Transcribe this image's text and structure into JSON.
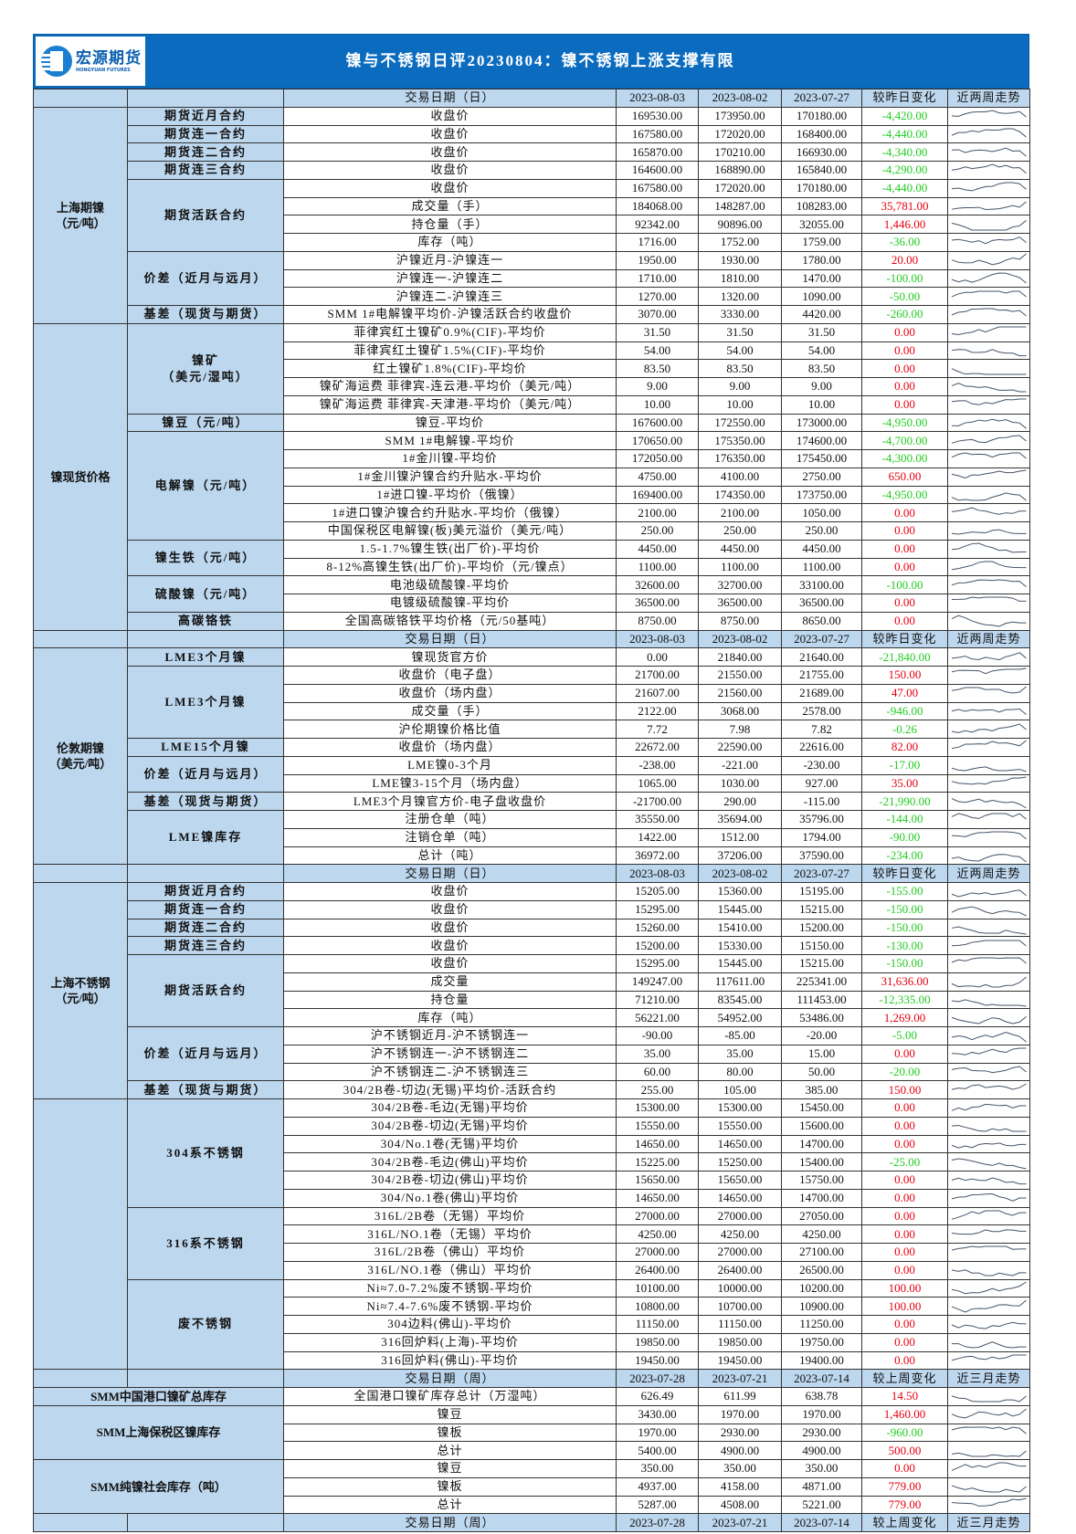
{
  "header": {
    "logo_cn": "宏源期货",
    "logo_en": "HONGYUAN FUTURES",
    "title": "镍与不锈钢日评20230804：镍不锈钢上涨支撑有限"
  },
  "colors": {
    "banner": "#0b6cbf",
    "header_fill": "#bdd7ee",
    "up": "#e60012",
    "down": "#22cc22",
    "sparkline": "#44546a"
  },
  "sections": [
    {
      "date_label": "交易日期（日）",
      "dates": [
        "2023-08-03",
        "2023-08-02",
        "2023-07-27"
      ],
      "change_label": "较昨日变化",
      "trend_label": "近两周走势",
      "blocks": [
        {
          "category": "上海期镍\n（元/吨）",
          "groups": [
            {
              "name": "期货近月合约",
              "rows": [
                [
                  "收盘价",
                  "169530.00",
                  "173950.00",
                  "170180.00",
                  "-4,420.00"
                ]
              ]
            },
            {
              "name": "期货连一合约",
              "rows": [
                [
                  "收盘价",
                  "167580.00",
                  "172020.00",
                  "168400.00",
                  "-4,440.00"
                ]
              ]
            },
            {
              "name": "期货连二合约",
              "rows": [
                [
                  "收盘价",
                  "165870.00",
                  "170210.00",
                  "166930.00",
                  "-4,340.00"
                ]
              ]
            },
            {
              "name": "期货连三合约",
              "rows": [
                [
                  "收盘价",
                  "164600.00",
                  "168890.00",
                  "165840.00",
                  "-4,290.00"
                ]
              ]
            },
            {
              "name": "期货活跃合约",
              "rows": [
                [
                  "收盘价",
                  "167580.00",
                  "172020.00",
                  "170180.00",
                  "-4,440.00"
                ],
                [
                  "成交量（手）",
                  "184068.00",
                  "148287.00",
                  "108283.00",
                  "35,781.00"
                ],
                [
                  "持仓量（手）",
                  "92342.00",
                  "90896.00",
                  "32055.00",
                  "1,446.00"
                ],
                [
                  "库存（吨）",
                  "1716.00",
                  "1752.00",
                  "1759.00",
                  "-36.00"
                ]
              ]
            },
            {
              "name": "价差（近月与远月）",
              "rows": [
                [
                  "沪镍近月-沪镍连一",
                  "1950.00",
                  "1930.00",
                  "1780.00",
                  "20.00"
                ],
                [
                  "沪镍连一-沪镍连二",
                  "1710.00",
                  "1810.00",
                  "1470.00",
                  "-100.00"
                ],
                [
                  "沪镍连二-沪镍连三",
                  "1270.00",
                  "1320.00",
                  "1090.00",
                  "-50.00"
                ]
              ]
            },
            {
              "name": "基差（现货与期货）",
              "rows": [
                [
                  "SMM 1#电解镍平均价-沪镍活跃合约收盘价",
                  "3070.00",
                  "3330.00",
                  "4420.00",
                  "-260.00"
                ]
              ]
            }
          ]
        },
        {
          "category": "镍现货价格",
          "groups": [
            {
              "name": "镍矿\n（美元/湿吨）",
              "rows": [
                [
                  "菲律宾红土镍矿0.9%(CIF)-平均价",
                  "31.50",
                  "31.50",
                  "31.50",
                  "0.00"
                ],
                [
                  "菲律宾红土镍矿1.5%(CIF)-平均价",
                  "54.00",
                  "54.00",
                  "54.00",
                  "0.00"
                ],
                [
                  "红土镍矿1.8%(CIF)-平均价",
                  "83.50",
                  "83.50",
                  "83.50",
                  "0.00"
                ],
                [
                  "镍矿海运费 菲律宾-连云港-平均价（美元/吨）",
                  "9.00",
                  "9.00",
                  "9.00",
                  "0.00"
                ],
                [
                  "镍矿海运费 菲律宾-天津港-平均价（美元/吨）",
                  "10.00",
                  "10.00",
                  "10.00",
                  "0.00"
                ]
              ]
            },
            {
              "name": "镍豆（元/吨）",
              "rows": [
                [
                  "镍豆-平均价",
                  "167600.00",
                  "172550.00",
                  "173000.00",
                  "-4,950.00"
                ]
              ]
            },
            {
              "name": "电解镍（元/吨）",
              "rows": [
                [
                  "SMM 1#电解镍-平均价",
                  "170650.00",
                  "175350.00",
                  "174600.00",
                  "-4,700.00"
                ],
                [
                  "1#金川镍-平均价",
                  "172050.00",
                  "176350.00",
                  "175450.00",
                  "-4,300.00"
                ],
                [
                  "1#金川镍沪镍合约升贴水-平均价",
                  "4750.00",
                  "4100.00",
                  "2750.00",
                  "650.00"
                ],
                [
                  "1#进口镍-平均价（俄镍）",
                  "169400.00",
                  "174350.00",
                  "173750.00",
                  "-4,950.00"
                ],
                [
                  "1#进口镍沪镍合约升贴水-平均价（俄镍）",
                  "2100.00",
                  "2100.00",
                  "1050.00",
                  "0.00"
                ],
                [
                  "中国保税区电解镍(板)美元溢价（美元/吨）",
                  "250.00",
                  "250.00",
                  "250.00",
                  "0.00"
                ]
              ]
            },
            {
              "name": "镍生铁（元/吨）",
              "rows": [
                [
                  "1.5-1.7%镍生铁(出厂价)-平均价",
                  "4450.00",
                  "4450.00",
                  "4450.00",
                  "0.00"
                ],
                [
                  "8-12%高镍生铁(出厂价)-平均价（元/镍点）",
                  "1100.00",
                  "1100.00",
                  "1100.00",
                  "0.00"
                ]
              ]
            },
            {
              "name": "硫酸镍（元/吨）",
              "rows": [
                [
                  "电池级硫酸镍-平均价",
                  "32600.00",
                  "32700.00",
                  "33100.00",
                  "-100.00"
                ],
                [
                  "电镀级硫酸镍-平均价",
                  "36500.00",
                  "36500.00",
                  "36500.00",
                  "0.00"
                ]
              ]
            },
            {
              "name": "高碳铬铁",
              "rows": [
                [
                  "全国高碳铬铁平均价格（元/50基吨）",
                  "8750.00",
                  "8750.00",
                  "8650.00",
                  "0.00"
                ]
              ]
            }
          ]
        }
      ]
    },
    {
      "date_label": "交易日期（日）",
      "dates": [
        "2023-08-03",
        "2023-08-02",
        "2023-07-27"
      ],
      "change_label": "较昨日变化",
      "trend_label": "近两周走势",
      "blocks": [
        {
          "category": "伦敦期镍\n（美元/吨）",
          "groups": [
            {
              "name": "LME3个月镍",
              "rows": [
                [
                  "镍现货官方价",
                  "0.00",
                  "21840.00",
                  "21640.00",
                  "-21,840.00"
                ]
              ]
            },
            {
              "name": "LME3个月镍",
              "rows": [
                [
                  "收盘价（电子盘）",
                  "21700.00",
                  "21550.00",
                  "21755.00",
                  "150.00"
                ],
                [
                  "收盘价（场内盘）",
                  "21607.00",
                  "21560.00",
                  "21689.00",
                  "47.00"
                ],
                [
                  "成交量（手）",
                  "2122.00",
                  "3068.00",
                  "2578.00",
                  "-946.00"
                ],
                [
                  "沪伦期镍价格比值",
                  "7.72",
                  "7.98",
                  "7.82",
                  "-0.26"
                ]
              ]
            },
            {
              "name": "LME15个月镍",
              "rows": [
                [
                  "收盘价（场内盘）",
                  "22672.00",
                  "22590.00",
                  "22616.00",
                  "82.00"
                ]
              ]
            },
            {
              "name": "价差（近月与远月）",
              "rows": [
                [
                  "LME镍0-3个月",
                  "-238.00",
                  "-221.00",
                  "-230.00",
                  "-17.00"
                ],
                [
                  "LME镍3-15个月（场内盘）",
                  "1065.00",
                  "1030.00",
                  "927.00",
                  "35.00"
                ]
              ]
            },
            {
              "name": "基差（现货与期货）",
              "rows": [
                [
                  "LME3个月镍官方价-电子盘收盘价",
                  "-21700.00",
                  "290.00",
                  "-115.00",
                  "-21,990.00"
                ]
              ]
            },
            {
              "name": "LME镍库存",
              "rows": [
                [
                  "注册仓单（吨）",
                  "35550.00",
                  "35694.00",
                  "35796.00",
                  "-144.00"
                ],
                [
                  "注销仓单（吨）",
                  "1422.00",
                  "1512.00",
                  "1794.00",
                  "-90.00"
                ],
                [
                  "总计（吨）",
                  "36972.00",
                  "37206.00",
                  "37590.00",
                  "-234.00"
                ]
              ]
            }
          ]
        }
      ]
    },
    {
      "date_label": "交易日期（日）",
      "dates": [
        "2023-08-03",
        "2023-08-02",
        "2023-07-27"
      ],
      "change_label": "较昨日变化",
      "trend_label": "近两周走势",
      "blocks": [
        {
          "category": "上海不锈钢\n（元/吨）",
          "groups": [
            {
              "name": "期货近月合约",
              "rows": [
                [
                  "收盘价",
                  "15205.00",
                  "15360.00",
                  "15195.00",
                  "-155.00"
                ]
              ]
            },
            {
              "name": "期货连一合约",
              "rows": [
                [
                  "收盘价",
                  "15295.00",
                  "15445.00",
                  "15215.00",
                  "-150.00"
                ]
              ]
            },
            {
              "name": "期货连二合约",
              "rows": [
                [
                  "收盘价",
                  "15260.00",
                  "15410.00",
                  "15200.00",
                  "-150.00"
                ]
              ]
            },
            {
              "name": "期货连三合约",
              "rows": [
                [
                  "收盘价",
                  "15200.00",
                  "15330.00",
                  "15150.00",
                  "-130.00"
                ]
              ]
            },
            {
              "name": "期货活跃合约",
              "rows": [
                [
                  "收盘价",
                  "15295.00",
                  "15445.00",
                  "15215.00",
                  "-150.00"
                ],
                [
                  "成交量",
                  "149247.00",
                  "117611.00",
                  "225341.00",
                  "31,636.00"
                ],
                [
                  "持仓量",
                  "71210.00",
                  "83545.00",
                  "111453.00",
                  "-12,335.00"
                ],
                [
                  "库存（吨）",
                  "56221.00",
                  "54952.00",
                  "53486.00",
                  "1,269.00"
                ]
              ]
            },
            {
              "name": "价差（近月与远月）",
              "rows": [
                [
                  "沪不锈钢近月-沪不锈钢连一",
                  "-90.00",
                  "-85.00",
                  "-20.00",
                  "-5.00"
                ],
                [
                  "沪不锈钢连一-沪不锈钢连二",
                  "35.00",
                  "35.00",
                  "15.00",
                  "0.00"
                ],
                [
                  "沪不锈钢连二-沪不锈钢连三",
                  "60.00",
                  "80.00",
                  "50.00",
                  "-20.00"
                ]
              ]
            },
            {
              "name": "基差（现货与期货）",
              "rows": [
                [
                  "304/2B卷-切边(无锡)平均价-活跃合约",
                  "255.00",
                  "105.00",
                  "385.00",
                  "150.00"
                ]
              ]
            }
          ]
        },
        {
          "category": "",
          "groups": [
            {
              "name": "304系不锈钢",
              "rows": [
                [
                  "304/2B卷-毛边(无锡)平均价",
                  "15300.00",
                  "15300.00",
                  "15450.00",
                  "0.00"
                ],
                [
                  "304/2B卷-切边(无锡)平均价",
                  "15550.00",
                  "15550.00",
                  "15600.00",
                  "0.00"
                ],
                [
                  "304/No.1卷(无锡)平均价",
                  "14650.00",
                  "14650.00",
                  "14700.00",
                  "0.00"
                ],
                [
                  "304/2B卷-毛边(佛山)平均价",
                  "15225.00",
                  "15250.00",
                  "15400.00",
                  "-25.00"
                ],
                [
                  "304/2B卷-切边(佛山)平均价",
                  "15650.00",
                  "15650.00",
                  "15750.00",
                  "0.00"
                ],
                [
                  "304/No.1卷(佛山)平均价",
                  "14650.00",
                  "14650.00",
                  "14700.00",
                  "0.00"
                ]
              ]
            },
            {
              "name": "316系不锈钢",
              "rows": [
                [
                  "316L/2B卷（无锡）平均价",
                  "27000.00",
                  "27000.00",
                  "27050.00",
                  "0.00"
                ],
                [
                  "316L/NO.1卷（无锡）平均价",
                  "4250.00",
                  "4250.00",
                  "4250.00",
                  "0.00"
                ],
                [
                  "316L/2B卷（佛山）平均价",
                  "27000.00",
                  "27000.00",
                  "27100.00",
                  "0.00"
                ],
                [
                  "316L/NO.1卷（佛山）平均价",
                  "26400.00",
                  "26400.00",
                  "26500.00",
                  "0.00"
                ]
              ]
            },
            {
              "name": "废不锈钢",
              "rows": [
                [
                  "Ni≈7.0-7.2%废不锈钢-平均价",
                  "10100.00",
                  "10000.00",
                  "10200.00",
                  "100.00"
                ],
                [
                  "Ni≈7.4-7.6%废不锈钢-平均价",
                  "10800.00",
                  "10700.00",
                  "10900.00",
                  "100.00"
                ],
                [
                  "304边料(佛山)-平均价",
                  "11150.00",
                  "11150.00",
                  "11250.00",
                  "0.00"
                ],
                [
                  "316回炉料(上海)-平均价",
                  "19850.00",
                  "19850.00",
                  "19750.00",
                  "0.00"
                ],
                [
                  "316回炉料(佛山)-平均价",
                  "19450.00",
                  "19450.00",
                  "19400.00",
                  "0.00"
                ]
              ]
            }
          ]
        }
      ]
    },
    {
      "date_label": "交易日期（周）",
      "dates": [
        "2023-07-28",
        "2023-07-21",
        "2023-07-14"
      ],
      "change_label": "较上周变化",
      "trend_label": "近三月走势",
      "blocks": [
        {
          "category": "SMM中国港口镍矿总库存",
          "merged": true,
          "rows": [
            [
              "全国港口镍矿库存总计（万湿吨）",
              "626.49",
              "611.99",
              "638.78",
              "14.50"
            ]
          ]
        },
        {
          "category": "SMM上海保税区镍库存",
          "merged": true,
          "rows": [
            [
              "镍豆",
              "3430.00",
              "1970.00",
              "1970.00",
              "1,460.00"
            ],
            [
              "镍板",
              "1970.00",
              "2930.00",
              "2930.00",
              "-960.00"
            ],
            [
              "总计",
              "5400.00",
              "4900.00",
              "4900.00",
              "500.00"
            ]
          ]
        },
        {
          "category": "SMM纯镍社会库存（吨）",
          "merged": true,
          "rows": [
            [
              "镍豆",
              "350.00",
              "350.00",
              "350.00",
              "0.00"
            ],
            [
              "镍板",
              "4937.00",
              "4158.00",
              "4871.00",
              "779.00"
            ],
            [
              "总计",
              "5287.00",
              "4508.00",
              "5221.00",
              "779.00"
            ]
          ]
        }
      ]
    },
    {
      "date_label": "交易日期（周）",
      "dates": [
        "2023-07-28",
        "2023-07-21",
        "2023-07-14"
      ],
      "change_label": "较上周变化",
      "trend_label": "近三月走势",
      "blocks": []
    }
  ]
}
